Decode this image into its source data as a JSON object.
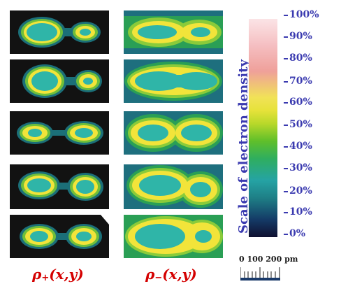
{
  "panels": {
    "rho_plus_count": 5,
    "rho_minus_count": 5
  },
  "labels": {
    "rho_plus": {
      "symbol": "ρ",
      "sub": "+",
      "args": "(x,y)"
    },
    "rho_minus": {
      "symbol": "ρ",
      "sub": "−",
      "args": "(x,y)"
    }
  },
  "colorbar": {
    "title": "Scale of electron density",
    "ticks": [
      "100%",
      "90%",
      "80%",
      "70%",
      "60%",
      "50%",
      "40%",
      "30%",
      "20%",
      "10%",
      "0%"
    ],
    "colors": [
      "#101030",
      "#1e7f86",
      "#25a3a4",
      "#5fbf2a",
      "#e6e23a",
      "#efa09a",
      "#fbe4e6"
    ]
  },
  "scale_bar": {
    "text": "0 100  200 pm"
  }
}
